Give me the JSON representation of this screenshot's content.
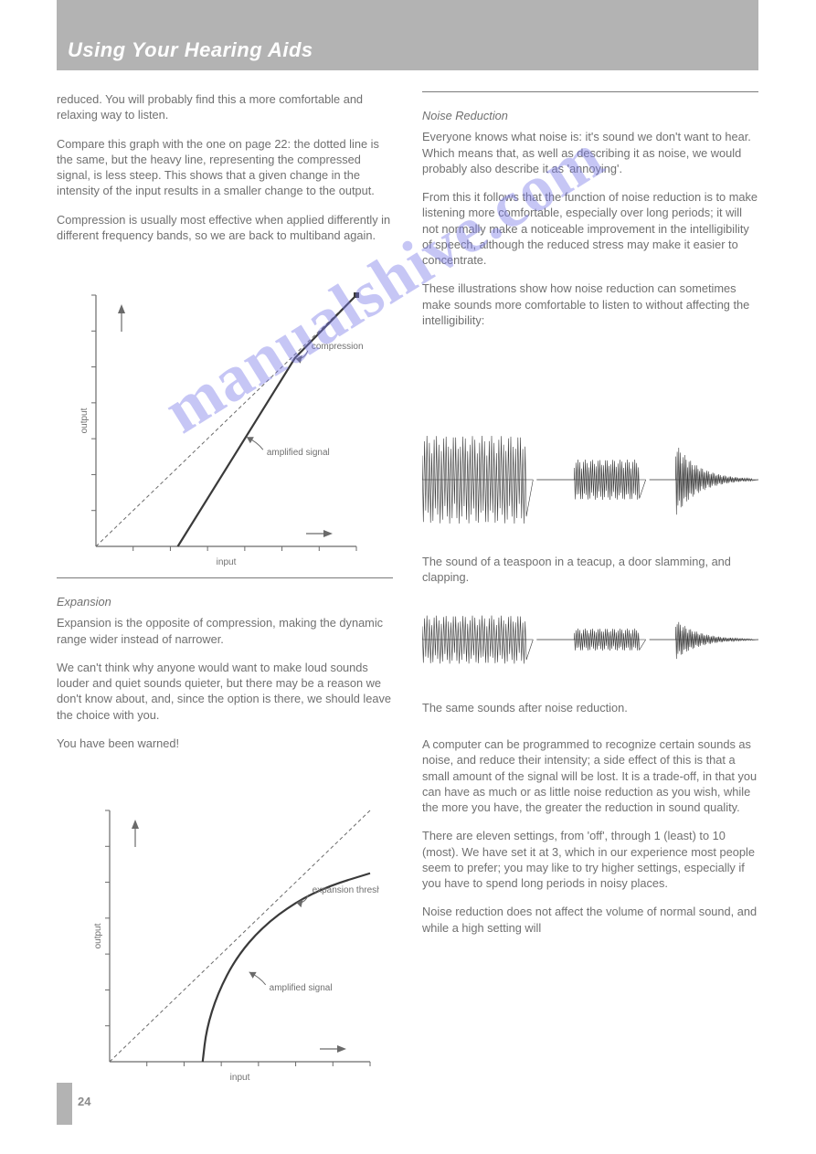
{
  "header": {
    "title": "Using Your Hearing Aids"
  },
  "page_number": "24",
  "watermark": "manualshive.com",
  "left_intro": {
    "p1": "reduced. You will probably find this a more comfortable and relaxing way to listen.",
    "p2": "Compare this graph with the one on page 22: the dotted line is the same, but the heavy line, representing the compressed signal, is less steep. This shows that a given change in the intensity of the input results in a smaller change to the output.",
    "p3": "Compression is usually most effective when applied differently in different frequency bands, so we are back to multiband again."
  },
  "expansion": {
    "heading": "Expansion",
    "p1": "Expansion is the opposite of compression, making the dynamic range wider instead of narrower.",
    "p2": "We can't think why anyone would want to make loud sounds louder and quiet sounds quieter, but there may be a reason we don't know about, and, since the option is there, we should leave the choice with you.",
    "p3": "You have been warned!"
  },
  "noise_reduction": {
    "heading": "Noise Reduction",
    "p1": "Everyone knows what noise is: it's sound we don't want to hear. Which means that, as well as describing it as noise, we would probably also describe it as 'annoying'.",
    "p2": "From this it follows that the function of noise reduction is to make listening more comfortable, especially over long periods; it will not normally make a noticeable improvement in the intelligibility of speech, although the reduced stress may make it easier to concentrate.",
    "p3": "These illustrations show how noise reduction can sometimes make sounds more comfortable to listen to without affecting the intelligibility:",
    "caption1": "The sound of a teaspoon in a teacup, a door slamming, and clapping.",
    "caption2": "The same sounds after noise reduction.",
    "p4": "A computer can be programmed to recognize certain sounds as noise, and reduce their intensity; a side effect of this is that a small amount of the signal will be lost. It is a trade-off, in that you can have as much or as little noise reduction as you wish, while the more you have, the greater the reduction in sound quality.",
    "p5": "There are eleven settings, from 'off', through 1 (least) to 10 (most). We have set it at 3, which in our experience most people seem to prefer; you may like to try higher settings, especially if you have to spend long periods in noisy places.",
    "p6": "Noise reduction does not affect the volume of normal sound, and while a high setting will"
  },
  "fig_compression": {
    "type": "line",
    "title": null,
    "x_label": "input",
    "y_label": "output",
    "x_range": [
      0,
      7
    ],
    "y_range": [
      0,
      7
    ],
    "ticks": 7,
    "dashed_line": {
      "from": [
        0,
        0
      ],
      "to": [
        7,
        7
      ]
    },
    "curve_points": [
      [
        2.2,
        0
      ],
      [
        5.35,
        5.25
      ],
      [
        7,
        7
      ]
    ],
    "knee_label": "compression threshold",
    "knee_at": [
      5.35,
      5.25
    ],
    "curve_label": "amplified signal",
    "curve_label_anchor": [
      4.0,
      3.1
    ],
    "end_dot": [
      7,
      7
    ],
    "colors": {
      "axis": "#6a6a6a",
      "dashed": "#6a6a6a",
      "curve": "#3a3a3a",
      "dot": "#3a3a3a",
      "text": "#707070"
    },
    "line_widths": {
      "axis": 1.2,
      "curve": 2.2,
      "dashed": 1
    },
    "font_size_label": 10
  },
  "fig_expansion": {
    "type": "line",
    "x_label": "input",
    "y_label": "output",
    "x_range": [
      0,
      7
    ],
    "y_range": [
      0,
      7
    ],
    "ticks": 7,
    "dashed_line": {
      "from": [
        0,
        0
      ],
      "to": [
        7,
        7
      ]
    },
    "curve_points": [
      [
        2.5,
        0
      ],
      [
        2.6,
        0.9
      ],
      [
        2.9,
        1.9
      ],
      [
        3.4,
        2.9
      ],
      [
        4.1,
        3.75
      ],
      [
        5.0,
        4.45
      ],
      [
        5.9,
        4.9
      ],
      [
        7.0,
        5.25
      ]
    ],
    "knee_label": "expansion threshold",
    "knee_at": [
      5.0,
      4.45
    ],
    "curve_label": "amplified signal",
    "curve_label_anchor": [
      3.7,
      2.55
    ],
    "colors": {
      "axis": "#6a6a6a",
      "dashed": "#6a6a6a",
      "curve": "#3a3a3a",
      "text": "#707070"
    },
    "line_widths": {
      "axis": 1.2,
      "curve": 2.2,
      "dashed": 1
    },
    "font_size_label": 10
  },
  "fig_wave_row": {
    "type": "waveform",
    "baseline_color": "#6a6a6a",
    "trace_color": "#3a3a3a",
    "trace_width": 0.6,
    "sounds": [
      {
        "amp": 48,
        "bursts": 22,
        "decay": 0.0,
        "prelude": 0.0
      },
      {
        "amp": 22,
        "bursts": 18,
        "decay": 0.0,
        "prelude": 0.35
      },
      {
        "amp": 40,
        "bursts": 26,
        "decay": 0.85,
        "prelude": 0.25
      }
    ]
  }
}
